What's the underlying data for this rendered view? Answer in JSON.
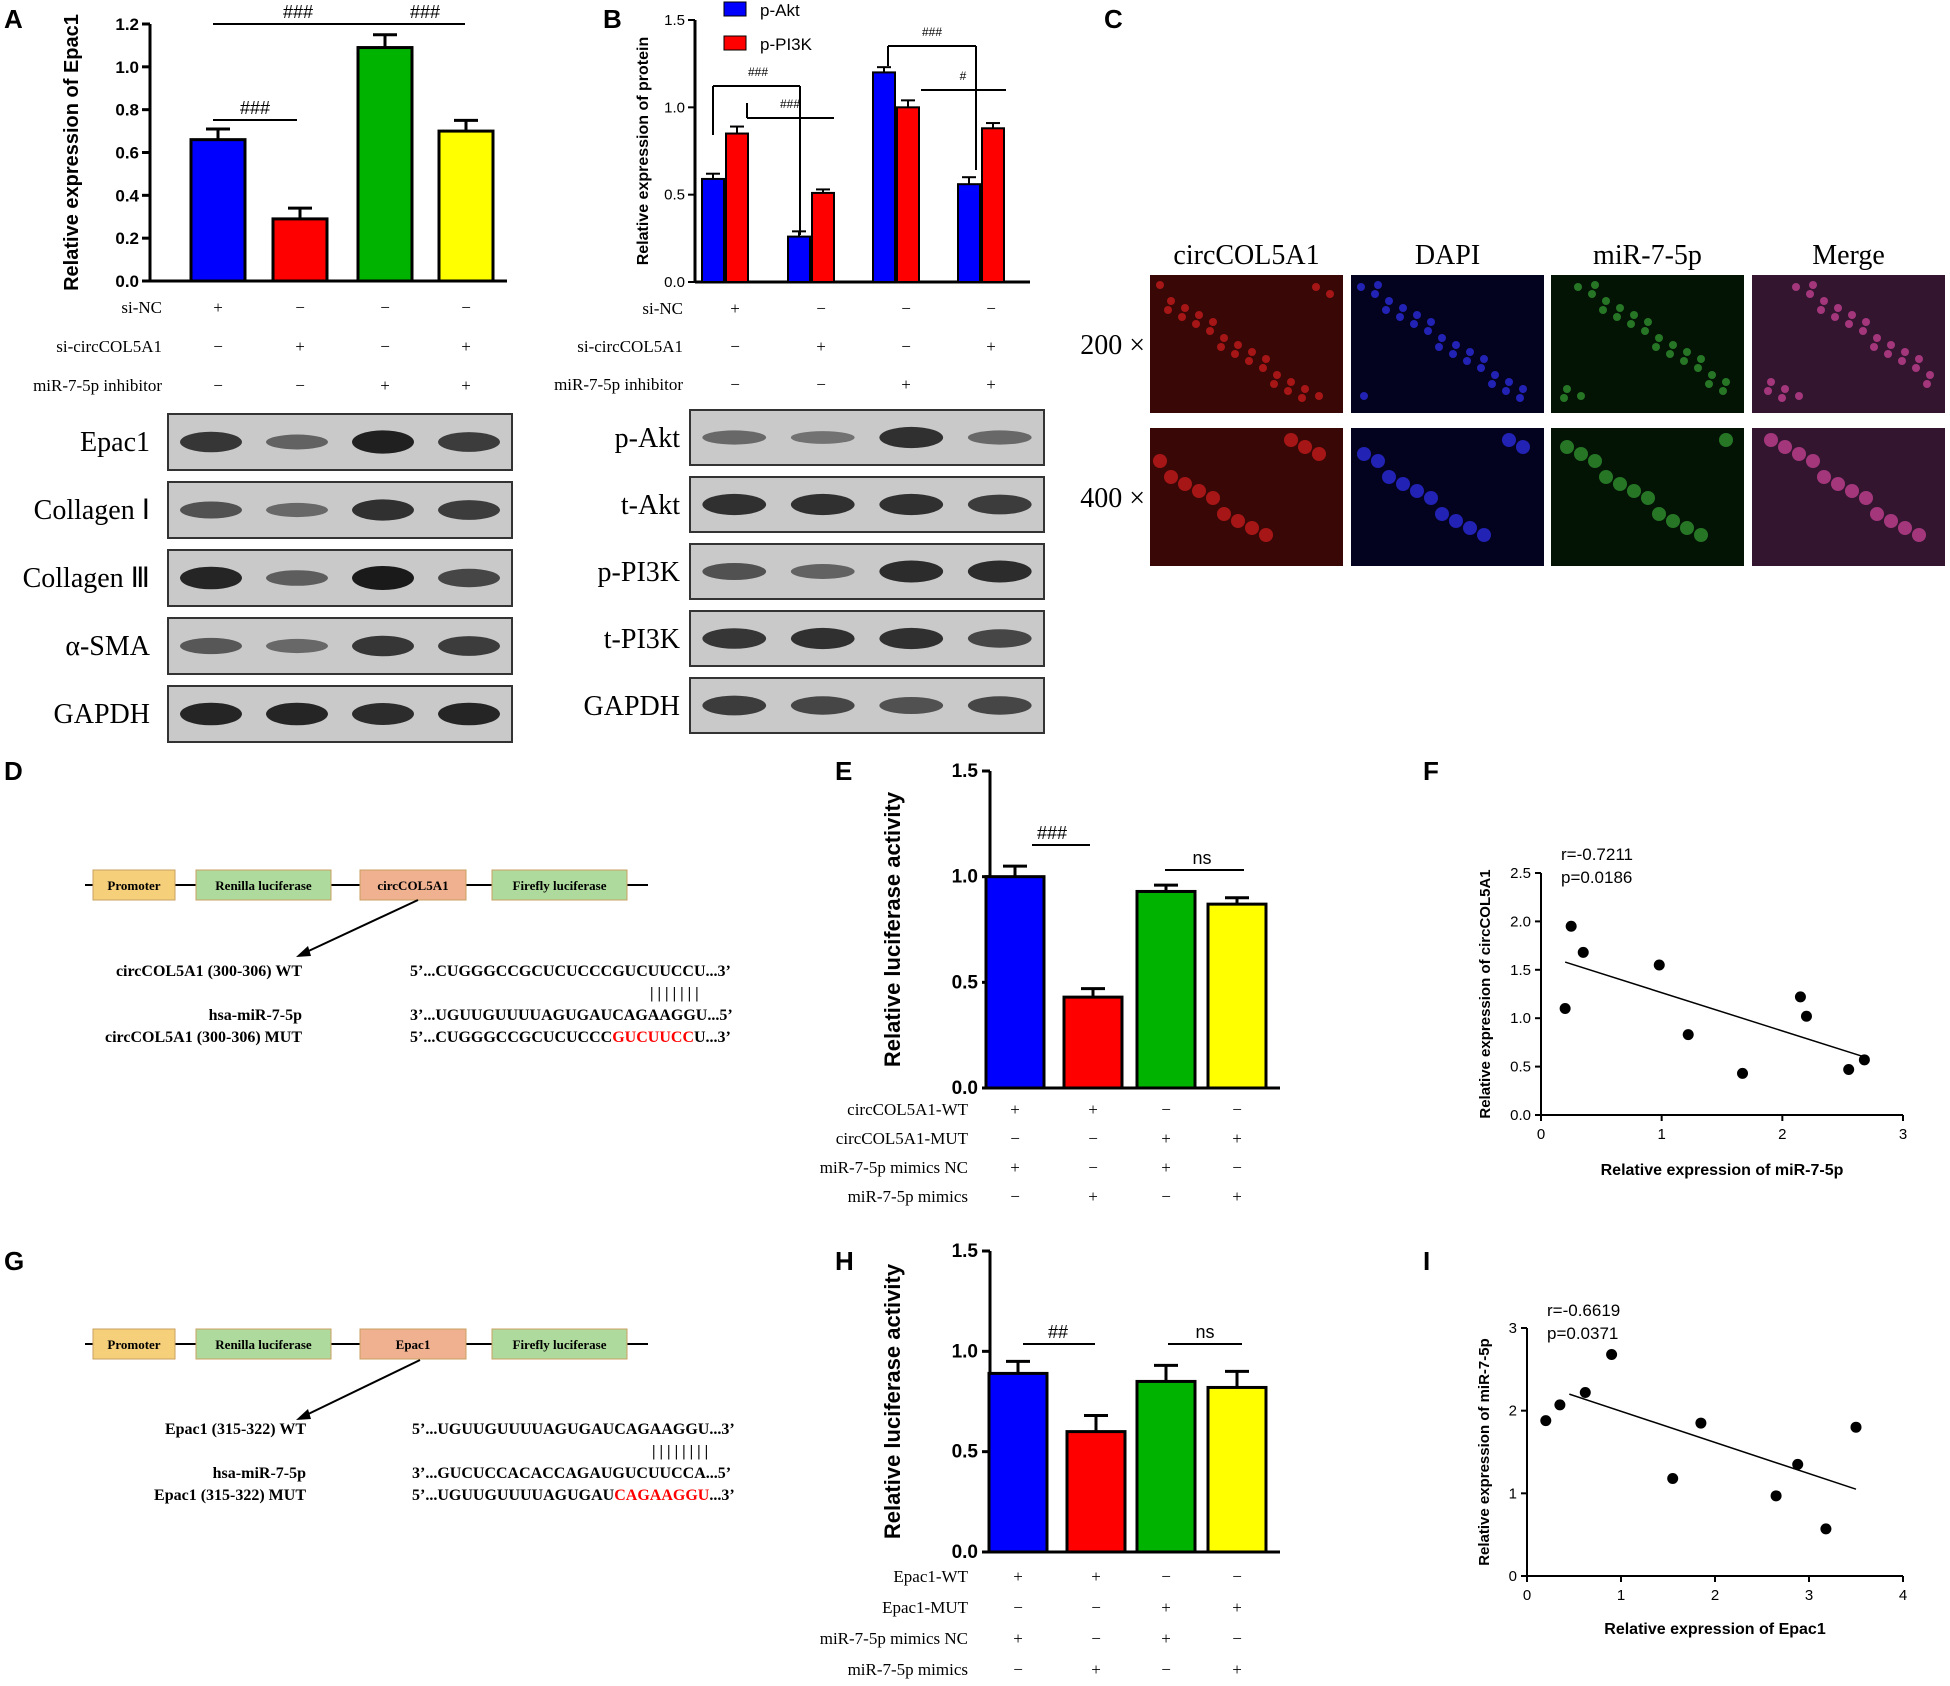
{
  "panel_letters": [
    "A",
    "B",
    "C",
    "D",
    "E",
    "F",
    "G",
    "H",
    "I"
  ],
  "chart_data": [
    {
      "panel": "A",
      "type": "bar",
      "ylabel": "Relative expression of Epac1",
      "ylim": [
        0,
        1.2
      ],
      "yticks": [
        "0.0",
        "0.2",
        "0.4",
        "0.6",
        "0.8",
        "1.0",
        "1.2"
      ],
      "categories": [
        "1",
        "2",
        "3",
        "4"
      ],
      "values": [
        0.66,
        0.29,
        1.09,
        0.7
      ],
      "errors": [
        0.05,
        0.05,
        0.06,
        0.05
      ],
      "colors": [
        "#0000ff",
        "#ff0000",
        "#00b300",
        "#ffff00"
      ],
      "annotations": [
        "###",
        "###",
        "###"
      ],
      "conditions": [
        {
          "label": "si-NC",
          "signs": [
            "+",
            "−",
            "−",
            "−"
          ]
        },
        {
          "label": "si-circCOL5A1",
          "signs": [
            "−",
            "+",
            "−",
            "+"
          ]
        },
        {
          "label": "miR-7-5p inhibitor",
          "signs": [
            "−",
            "−",
            "+",
            "+"
          ]
        }
      ],
      "blot_labels": [
        "Epac1",
        "Collagen Ⅰ",
        "Collagen Ⅲ",
        "α-SMA",
        "GAPDH"
      ]
    },
    {
      "panel": "B",
      "type": "bar",
      "ylabel": "Relative expression of protein",
      "ylim": [
        0,
        1.5
      ],
      "yticks": [
        "0.0",
        "0.5",
        "1.0",
        "1.5"
      ],
      "categories": [
        "1",
        "2",
        "3",
        "4"
      ],
      "series": [
        {
          "name": "p-Akt",
          "color": "#0000ff",
          "values": [
            0.59,
            0.26,
            1.2,
            0.56
          ],
          "errors": [
            0.03,
            0.03,
            0.03,
            0.04
          ]
        },
        {
          "name": "p-PI3K",
          "color": "#ff0000",
          "values": [
            0.85,
            0.51,
            1.0,
            0.88
          ],
          "errors": [
            0.04,
            0.02,
            0.04,
            0.03
          ]
        }
      ],
      "annotations": [
        "###",
        "###",
        "###",
        "#"
      ],
      "conditions": [
        {
          "label": "si-NC",
          "signs": [
            "+",
            "−",
            "−",
            "−"
          ]
        },
        {
          "label": "si-circCOL5A1",
          "signs": [
            "−",
            "+",
            "−",
            "+"
          ]
        },
        {
          "label": "miR-7-5p inhibitor",
          "signs": [
            "−",
            "−",
            "+",
            "+"
          ]
        }
      ],
      "blot_labels": [
        "p-Akt",
        "t-Akt",
        "p-PI3K",
        "t-PI3K",
        "GAPDH"
      ]
    },
    {
      "panel": "E",
      "type": "bar",
      "ylabel": "Relative luciferase activity",
      "ylim": [
        0,
        1.5
      ],
      "yticks": [
        "0.0",
        "0.5",
        "1.0",
        "1.5"
      ],
      "categories": [
        "1",
        "2",
        "3",
        "4"
      ],
      "values": [
        1.0,
        0.43,
        0.93,
        0.87
      ],
      "errors": [
        0.05,
        0.04,
        0.03,
        0.03
      ],
      "colors": [
        "#0000ff",
        "#ff0000",
        "#00b300",
        "#ffff00"
      ],
      "annotations": [
        "###",
        "ns"
      ],
      "conditions": [
        {
          "label": "circCOL5A1-WT",
          "signs": [
            "+",
            "+",
            "−",
            "−"
          ]
        },
        {
          "label": "circCOL5A1-MUT",
          "signs": [
            "−",
            "−",
            "+",
            "+"
          ]
        },
        {
          "label": "miR-7-5p mimics NC",
          "signs": [
            "+",
            "−",
            "+",
            "−"
          ]
        },
        {
          "label": "miR-7-5p mimics",
          "signs": [
            "−",
            "+",
            "−",
            "+"
          ]
        }
      ]
    },
    {
      "panel": "H",
      "type": "bar",
      "ylabel": "Relative luciferase activity",
      "ylim": [
        0,
        1.5
      ],
      "yticks": [
        "0.0",
        "0.5",
        "1.0",
        "1.5"
      ],
      "categories": [
        "1",
        "2",
        "3",
        "4"
      ],
      "values": [
        0.89,
        0.6,
        0.85,
        0.82
      ],
      "errors": [
        0.06,
        0.08,
        0.08,
        0.08
      ],
      "colors": [
        "#0000ff",
        "#ff0000",
        "#00b300",
        "#ffff00"
      ],
      "annotations": [
        "##",
        "ns"
      ],
      "conditions": [
        {
          "label": "Epac1-WT",
          "signs": [
            "+",
            "+",
            "−",
            "−"
          ]
        },
        {
          "label": "Epac1-MUT",
          "signs": [
            "−",
            "−",
            "+",
            "+"
          ]
        },
        {
          "label": "miR-7-5p mimics NC",
          "signs": [
            "+",
            "−",
            "+",
            "−"
          ]
        },
        {
          "label": "miR-7-5p mimics",
          "signs": [
            "−",
            "+",
            "−",
            "+"
          ]
        }
      ]
    },
    {
      "panel": "F",
      "type": "scatter",
      "xlabel": "Relative expression of miR-7-5p",
      "ylabel": "Relative expression of circCOL5A1",
      "xlim": [
        0,
        3
      ],
      "ylim": [
        0,
        2.5
      ],
      "xticks": [
        "0",
        "1",
        "2",
        "3"
      ],
      "yticks": [
        "0.0",
        "0.5",
        "1.0",
        "1.5",
        "2.0",
        "2.5"
      ],
      "r_text": "r=-0.7211",
      "p_text": "p=0.0186",
      "points": [
        [
          0.2,
          1.1
        ],
        [
          0.25,
          1.95
        ],
        [
          0.35,
          1.68
        ],
        [
          0.98,
          1.55
        ],
        [
          1.22,
          0.83
        ],
        [
          1.67,
          0.43
        ],
        [
          2.15,
          1.22
        ],
        [
          2.2,
          1.02
        ],
        [
          2.55,
          0.47
        ],
        [
          2.68,
          0.57
        ]
      ],
      "fit": [
        [
          0.2,
          1.58
        ],
        [
          2.68,
          0.6
        ]
      ]
    },
    {
      "panel": "I",
      "type": "scatter",
      "xlabel": "Relative expression of Epac1",
      "ylabel": "Relative expression of miR-7-5p",
      "xlim": [
        0,
        4
      ],
      "ylim": [
        0,
        3
      ],
      "xticks": [
        "0",
        "1",
        "2",
        "3",
        "4"
      ],
      "yticks": [
        "0",
        "1",
        "2",
        "3"
      ],
      "r_text": "r=-0.6619",
      "p_text": "p=0.0371",
      "points": [
        [
          0.2,
          1.88
        ],
        [
          0.35,
          2.07
        ],
        [
          0.62,
          2.22
        ],
        [
          0.9,
          2.68
        ],
        [
          1.55,
          1.18
        ],
        [
          1.85,
          1.85
        ],
        [
          2.65,
          0.97
        ],
        [
          2.88,
          1.35
        ],
        [
          3.18,
          0.57
        ],
        [
          3.5,
          1.8
        ]
      ],
      "fit": [
        [
          0.45,
          2.2
        ],
        [
          3.5,
          1.05
        ]
      ]
    }
  ],
  "panel_C": {
    "columns": [
      "circCOL5A1",
      "DAPI",
      "miR-7-5p",
      "Merge"
    ],
    "rows": [
      "200 ×",
      "400 ×"
    ]
  },
  "diagram_D": {
    "boxes": [
      "Promoter",
      "Renilla luciferase",
      "circCOL5A1",
      "Firefly luciferase"
    ],
    "rows": [
      {
        "label": "circCOL5A1 (300-306) WT",
        "seq": "5’...CUGGGCCGCUCUCCCGUCUUCCU...3’",
        "highlight": ""
      },
      {
        "label": "",
        "seq": "| | | | | | |",
        "highlight": ""
      },
      {
        "label": "hsa-miR-7-5p",
        "seq": "3’...UGUUGUUUUAGUGAUCAGAAGGU...5’",
        "highlight": ""
      },
      {
        "label": "circCOL5A1 (300-306) MUT",
        "seq": "5’...CUGGGCCGCUCUCCC",
        "highlight": "GUCUUCC",
        "tail": "U...3’"
      }
    ]
  },
  "diagram_G": {
    "boxes": [
      "Promoter",
      "Renilla luciferase",
      "Epac1",
      "Firefly luciferase"
    ],
    "rows": [
      {
        "label": "Epac1 (315-322) WT",
        "seq": "5’...UGUUGUUUUAGUGAUCAGAAGGU...3’",
        "highlight": ""
      },
      {
        "label": "",
        "seq": "| | | | | | | |",
        "highlight": ""
      },
      {
        "label": "hsa-miR-7-5p",
        "seq": "3’...GUCUCCACACCAGAUGUCUUCCA...5’",
        "highlight": ""
      },
      {
        "label": "Epac1 (315-322) MUT",
        "seq": "5’...UGUUGUUUUAGUGAU",
        "highlight": "CAGAAGGU",
        "tail": "...3’"
      }
    ]
  }
}
